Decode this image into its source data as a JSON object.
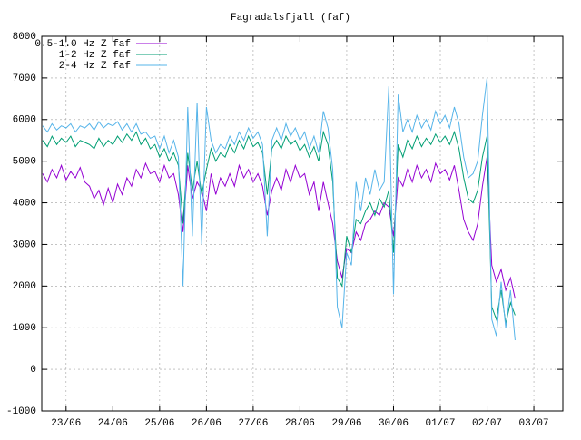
{
  "chart_data": {
    "type": "line",
    "title": "Fagradalsfjall (faf)",
    "x": [
      -0.5,
      -0.4,
      -0.3,
      -0.2,
      -0.1,
      0,
      0.1,
      0.2,
      0.3,
      0.4,
      0.5,
      0.6,
      0.7,
      0.8,
      0.9,
      1,
      1.1,
      1.2,
      1.3,
      1.4,
      1.5,
      1.6,
      1.7,
      1.8,
      1.9,
      2,
      2.1,
      2.2,
      2.3,
      2.4,
      2.5,
      2.6,
      2.7,
      2.8,
      2.9,
      3,
      3.1,
      3.2,
      3.3,
      3.4,
      3.5,
      3.6,
      3.7,
      3.8,
      3.9,
      4,
      4.1,
      4.2,
      4.3,
      4.4,
      4.5,
      4.6,
      4.7,
      4.8,
      4.9,
      5,
      5.1,
      5.2,
      5.3,
      5.4,
      5.5,
      5.6,
      5.7,
      5.8,
      5.9,
      6,
      6.1,
      6.2,
      6.3,
      6.4,
      6.5,
      6.6,
      6.7,
      6.8,
      6.9,
      7,
      7.1,
      7.2,
      7.3,
      7.4,
      7.5,
      7.6,
      7.7,
      7.8,
      7.9,
      8,
      8.1,
      8.2,
      8.3,
      8.4,
      8.5,
      8.6,
      8.7,
      8.8,
      8.9,
      9,
      9.1,
      9.2,
      9.3,
      9.4,
      9.5,
      9.6
    ],
    "series": [
      {
        "name": "0.5-1.0 Hz Z faf",
        "color": "#9400d3",
        "values": [
          4700,
          4500,
          4800,
          4600,
          4900,
          4550,
          4750,
          4600,
          4850,
          4500,
          4400,
          4100,
          4300,
          3950,
          4350,
          4000,
          4450,
          4200,
          4600,
          4400,
          4800,
          4600,
          4950,
          4700,
          4750,
          4500,
          4900,
          4600,
          4700,
          4200,
          3300,
          4900,
          4100,
          4500,
          4300,
          3800,
          4700,
          4200,
          4600,
          4400,
          4700,
          4400,
          4900,
          4600,
          4800,
          4500,
          4700,
          4400,
          3700,
          4300,
          4600,
          4300,
          4800,
          4500,
          4900,
          4600,
          4700,
          4200,
          4500,
          3800,
          4500,
          4000,
          3500,
          2600,
          2200,
          2900,
          2800,
          3300,
          3100,
          3500,
          3600,
          3800,
          3700,
          4000,
          3900,
          3200,
          4600,
          4400,
          4800,
          4500,
          4900,
          4600,
          4800,
          4500,
          4950,
          4700,
          4800,
          4550,
          4900,
          4300,
          3600,
          3300,
          3100,
          3500,
          4400,
          5100,
          2500,
          2100,
          2400,
          1900,
          2200,
          1700
        ]
      },
      {
        "name": "1-2 Hz Z faf",
        "color": "#009e73",
        "values": [
          5500,
          5350,
          5600,
          5400,
          5550,
          5450,
          5600,
          5350,
          5500,
          5450,
          5400,
          5300,
          5550,
          5350,
          5500,
          5400,
          5600,
          5450,
          5650,
          5500,
          5700,
          5400,
          5550,
          5300,
          5400,
          5100,
          5300,
          5000,
          5200,
          4900,
          3500,
          5200,
          4300,
          5000,
          4200,
          4800,
          5300,
          5000,
          5200,
          5100,
          5400,
          5200,
          5500,
          5300,
          5600,
          5350,
          5450,
          5200,
          4200,
          5300,
          5500,
          5300,
          5600,
          5400,
          5500,
          5250,
          5400,
          5100,
          5350,
          5000,
          5700,
          5400,
          4500,
          2200,
          2000,
          3200,
          2800,
          3600,
          3500,
          3800,
          4000,
          3700,
          4100,
          3900,
          4300,
          2800,
          5400,
          5100,
          5500,
          5300,
          5600,
          5350,
          5550,
          5400,
          5650,
          5450,
          5600,
          5400,
          5700,
          5300,
          4600,
          4100,
          4000,
          4300,
          5100,
          5600,
          1500,
          1200,
          1900,
          1100,
          1600,
          1300
        ]
      },
      {
        "name": "2-4 Hz Z faf",
        "color": "#56b4e9",
        "values": [
          5850,
          5700,
          5900,
          5750,
          5850,
          5800,
          5900,
          5700,
          5850,
          5800,
          5900,
          5750,
          5950,
          5800,
          5900,
          5850,
          5950,
          5750,
          5900,
          5700,
          5900,
          5650,
          5700,
          5550,
          5600,
          5300,
          5600,
          5200,
          5500,
          5100,
          2000,
          6300,
          3200,
          6400,
          3000,
          6300,
          5500,
          5200,
          5400,
          5300,
          5600,
          5400,
          5700,
          5500,
          5800,
          5550,
          5700,
          5400,
          3200,
          5500,
          5800,
          5500,
          5900,
          5600,
          5800,
          5500,
          5700,
          5300,
          5600,
          5200,
          6200,
          5800,
          4800,
          1500,
          1000,
          2800,
          2500,
          4500,
          3800,
          4600,
          4200,
          4800,
          4300,
          4500,
          6800,
          1800,
          6600,
          5700,
          6000,
          5700,
          6100,
          5800,
          6000,
          5750,
          6200,
          5900,
          6100,
          5800,
          6300,
          5900,
          5100,
          4600,
          4700,
          5000,
          6100,
          7000,
          1200,
          800,
          2100,
          1000,
          1900,
          700
        ]
      }
    ],
    "xlim": [
      -0.52,
      10.62
    ],
    "xticks": [
      {
        "value": 0,
        "label": "23/06"
      },
      {
        "value": 1,
        "label": "24/06"
      },
      {
        "value": 2,
        "label": "25/06"
      },
      {
        "value": 3,
        "label": "26/06"
      },
      {
        "value": 4,
        "label": "27/06"
      },
      {
        "value": 5,
        "label": "28/06"
      },
      {
        "value": 6,
        "label": "29/06"
      },
      {
        "value": 7,
        "label": "30/06"
      },
      {
        "value": 8,
        "label": "01/07"
      },
      {
        "value": 9,
        "label": "02/07"
      },
      {
        "value": 10,
        "label": "03/07"
      }
    ],
    "ylim": [
      -1000,
      8000
    ],
    "yticks": [
      -1000,
      0,
      1000,
      2000,
      3000,
      4000,
      5000,
      6000,
      7000,
      8000
    ],
    "grid": true,
    "legend": "top-left"
  }
}
